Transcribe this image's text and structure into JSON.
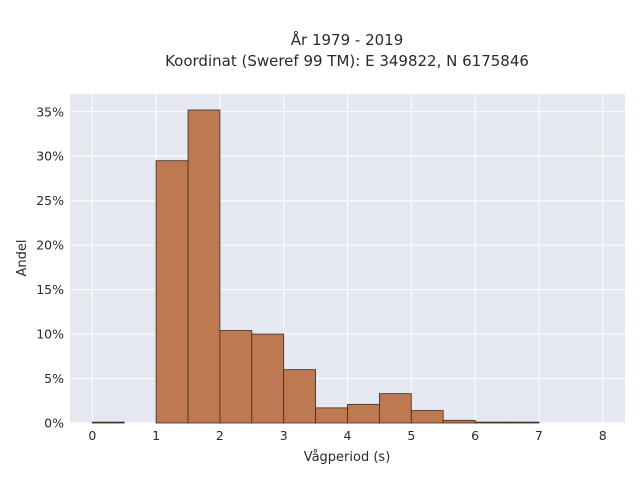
{
  "chart_data": {
    "type": "bar",
    "title_line1": "År 1979 - 2019",
    "title_line2": "Koordinat (Sweref 99 TM): E 349822, N 6175846",
    "xlabel": "Vågperiod (s)",
    "ylabel": "Andel",
    "xlim": [
      -0.35,
      8.35
    ],
    "ylim": [
      0,
      0.37
    ],
    "x_ticks": [
      0,
      1,
      2,
      3,
      4,
      5,
      6,
      7,
      8
    ],
    "x_tick_labels": [
      "0",
      "1",
      "2",
      "3",
      "4",
      "5",
      "6",
      "7",
      "8"
    ],
    "y_ticks": [
      0,
      0.05,
      0.1,
      0.15,
      0.2,
      0.25,
      0.3,
      0.35
    ],
    "y_tick_labels": [
      "0%",
      "5%",
      "10%",
      "15%",
      "20%",
      "25%",
      "30%",
      "35%"
    ],
    "grid": true,
    "bin_width": 0.5,
    "bins": [
      {
        "x0": 0.0,
        "x1": 0.5,
        "value": 0.001
      },
      {
        "x0": 1.0,
        "x1": 1.5,
        "value": 0.295
      },
      {
        "x0": 1.5,
        "x1": 2.0,
        "value": 0.352
      },
      {
        "x0": 2.0,
        "x1": 2.5,
        "value": 0.104
      },
      {
        "x0": 2.5,
        "x1": 3.0,
        "value": 0.1
      },
      {
        "x0": 3.0,
        "x1": 3.5,
        "value": 0.06
      },
      {
        "x0": 3.5,
        "x1": 4.0,
        "value": 0.017
      },
      {
        "x0": 4.0,
        "x1": 4.5,
        "value": 0.021
      },
      {
        "x0": 4.5,
        "x1": 5.0,
        "value": 0.033
      },
      {
        "x0": 5.0,
        "x1": 5.5,
        "value": 0.014
      },
      {
        "x0": 5.5,
        "x1": 6.0,
        "value": 0.003
      },
      {
        "x0": 6.0,
        "x1": 6.5,
        "value": 0.001
      },
      {
        "x0": 6.5,
        "x1": 7.0,
        "value": 0.001
      }
    ],
    "colors": {
      "bar_fill": "#bd7a52",
      "bar_stroke": "#3a2a20",
      "plot_bg": "#e5e8f0",
      "grid": "#ffffff"
    }
  }
}
